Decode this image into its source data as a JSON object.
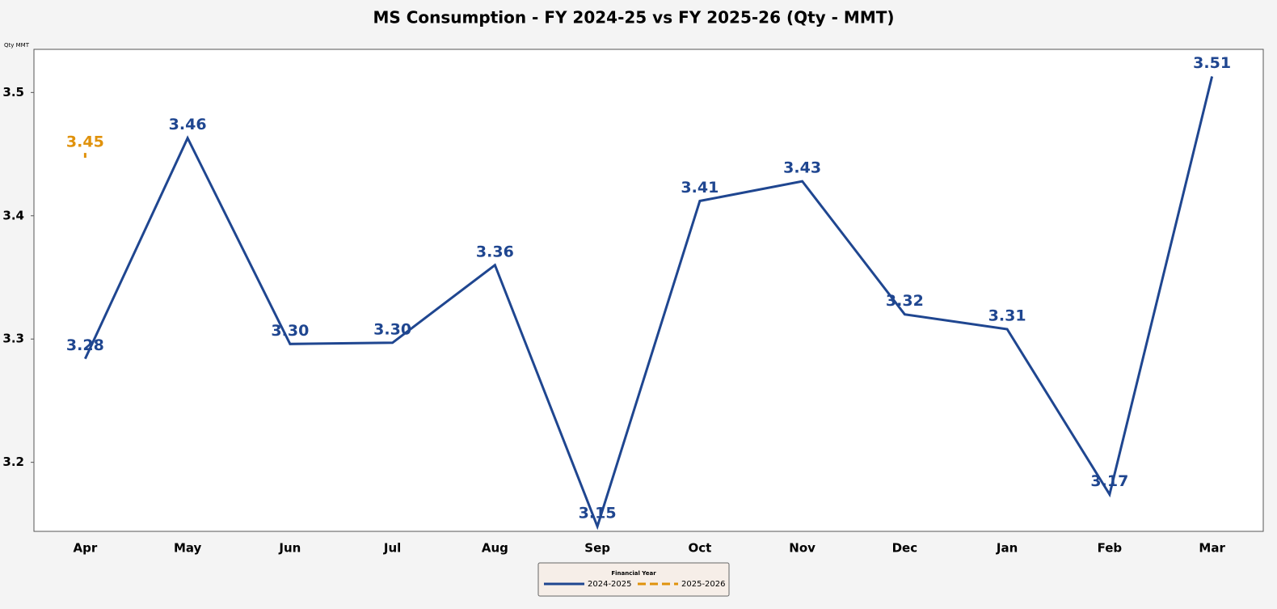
{
  "chart_data": {
    "type": "line",
    "title": "MS Consumption - FY 2024-25 vs FY 2025-26 (Qty - MMT)",
    "y_label": "Qty MMT",
    "categories": [
      "Apr",
      "May",
      "Jun",
      "Jul",
      "Aug",
      "Sep",
      "Oct",
      "Nov",
      "Dec",
      "Jan",
      "Feb",
      "Mar"
    ],
    "series": [
      {
        "name": "2024-2025",
        "color": "#1f4690",
        "dashed": false,
        "values": [
          3.284,
          3.463,
          3.296,
          3.297,
          3.36,
          3.148,
          3.412,
          3.428,
          3.32,
          3.308,
          3.174,
          3.513
        ],
        "value_labels": [
          "3.28",
          "3.46",
          "3.30",
          "3.30",
          "3.36",
          "3.15",
          "3.41",
          "3.43",
          "3.32",
          "3.31",
          "3.17",
          "3.51"
        ]
      },
      {
        "name": "2025-2026",
        "color": "#e0920c",
        "dashed": true,
        "values": [
          3.449,
          null,
          null,
          null,
          null,
          null,
          null,
          null,
          null,
          null,
          null,
          null
        ],
        "value_labels": [
          "3.45",
          null,
          null,
          null,
          null,
          null,
          null,
          null,
          null,
          null,
          null,
          null
        ]
      }
    ],
    "ylim": [
      3.144,
      3.535
    ],
    "yticks": [
      3.2,
      3.3,
      3.4,
      3.5
    ],
    "grid": false,
    "legend_title": "Financial Year",
    "legend_position": "bottom"
  }
}
